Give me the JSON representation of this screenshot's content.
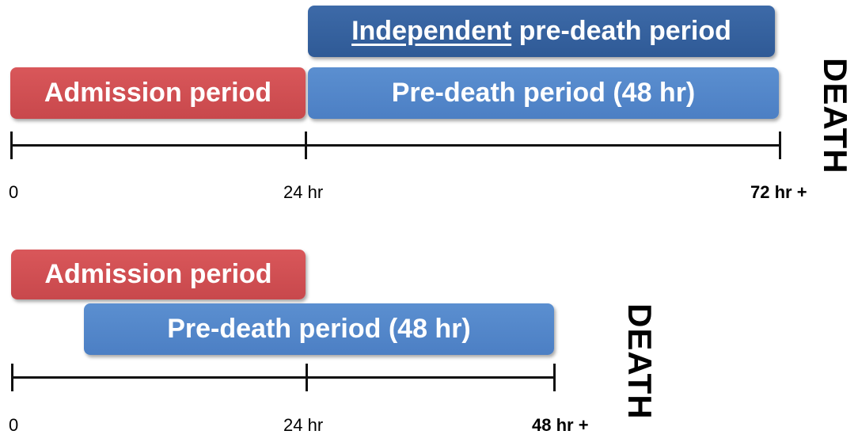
{
  "top": {
    "independent": {
      "underlined": "Independent",
      "rest": " pre-death period"
    },
    "admission_label": "Admission period",
    "predeath_label": "Pre-death period (48 hr)",
    "death_label": "DEATH",
    "ticks": {
      "start": "0",
      "mid": "24 hr",
      "end": "72 hr +"
    }
  },
  "bottom": {
    "admission_label": "Admission period",
    "predeath_label": "Pre-death period (48 hr)",
    "death_label": "DEATH",
    "ticks": {
      "start": "0",
      "mid": "24 hr",
      "end": "48 hr +"
    }
  },
  "colors": {
    "admission": "#cf4f52",
    "predeath": "#5286c9",
    "independent": "#33609e"
  }
}
